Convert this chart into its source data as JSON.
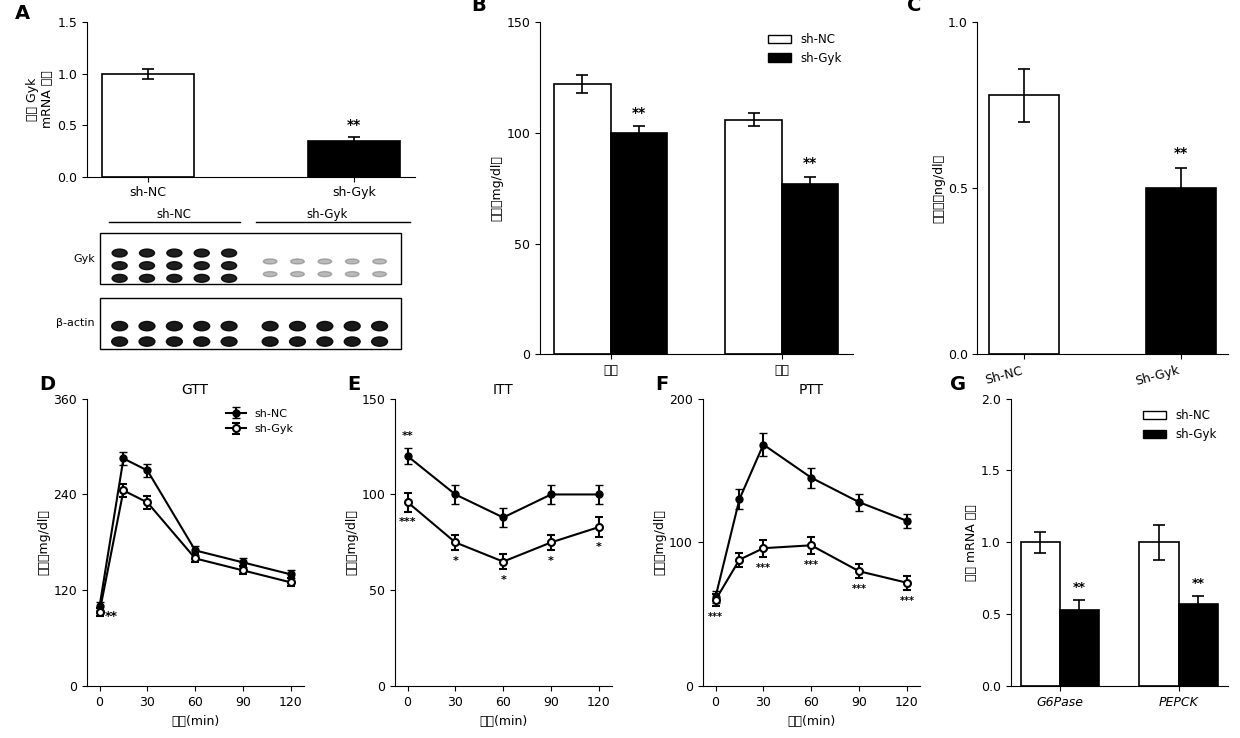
{
  "panel_A": {
    "label": "A",
    "bar_categories": [
      "sh-NC",
      "sh-Gyk"
    ],
    "bar_values": [
      1.0,
      0.35
    ],
    "bar_errors": [
      0.05,
      0.04
    ],
    "bar_colors": [
      "white",
      "black"
    ],
    "ylabel": "相对 Gyk\nmRNA 水平",
    "ylim": [
      0,
      1.5
    ],
    "yticks": [
      0.0,
      0.5,
      1.0,
      1.5
    ],
    "sig_labels": [
      "",
      "**"
    ]
  },
  "panel_B": {
    "label": "B",
    "group_labels": [
      "喂食",
      "禁食"
    ],
    "nc_values": [
      122,
      106
    ],
    "nc_errors": [
      4,
      3
    ],
    "gyk_values": [
      100,
      77
    ],
    "gyk_errors": [
      3,
      3
    ],
    "ylabel": "血糖（mg/dl）",
    "ylim": [
      0,
      150
    ],
    "yticks": [
      0,
      50,
      100,
      150
    ],
    "sig_labels": [
      "**",
      "**"
    ],
    "legend_labels": [
      "sh-NC",
      "sh-Gyk"
    ]
  },
  "panel_C": {
    "label": "C",
    "bar_categories": [
      "Sh-NC",
      "Sh-Gyk"
    ],
    "bar_values": [
      0.78,
      0.5
    ],
    "bar_errors": [
      0.08,
      0.06
    ],
    "bar_colors": [
      "white",
      "black"
    ],
    "ylabel": "胰岛素（ng/dl）",
    "ylim": [
      0,
      1.0
    ],
    "yticks": [
      0,
      0.5,
      1.0
    ],
    "sig_labels": [
      "",
      "**"
    ]
  },
  "panel_D": {
    "label": "D",
    "title": "GTT",
    "time_points": [
      0,
      15,
      30,
      60,
      90,
      120
    ],
    "nc_values": [
      100,
      285,
      270,
      170,
      155,
      140
    ],
    "nc_errors": [
      5,
      8,
      8,
      6,
      6,
      5
    ],
    "gyk_values": [
      93,
      245,
      230,
      160,
      145,
      130
    ],
    "gyk_errors": [
      5,
      8,
      8,
      5,
      5,
      5
    ],
    "ylabel": "血糖（mg/dl）",
    "xlabel": "时间(min)",
    "ylim": [
      0,
      360
    ],
    "yticks": [
      0,
      120,
      240,
      360
    ],
    "xticks": [
      0,
      30,
      60,
      90,
      120
    ],
    "legend_labels": [
      "sh-NC",
      "sh-Gyk"
    ]
  },
  "panel_E": {
    "label": "E",
    "title": "ITT",
    "time_points": [
      0,
      30,
      60,
      90,
      120
    ],
    "nc_values": [
      120,
      100,
      88,
      100,
      100
    ],
    "nc_errors": [
      4,
      5,
      5,
      5,
      5
    ],
    "gyk_values": [
      96,
      75,
      65,
      75,
      83
    ],
    "gyk_errors": [
      5,
      4,
      4,
      4,
      5
    ],
    "ylabel": "血糖（mg/dl）",
    "xlabel": "时间(min)",
    "ylim": [
      0,
      150
    ],
    "yticks": [
      0,
      50,
      100,
      150
    ],
    "xticks": [
      0,
      30,
      60,
      90,
      120
    ]
  },
  "panel_F": {
    "label": "F",
    "title": "PTT",
    "time_points": [
      0,
      15,
      30,
      60,
      90,
      120
    ],
    "nc_values": [
      62,
      130,
      168,
      145,
      128,
      115
    ],
    "nc_errors": [
      4,
      7,
      8,
      7,
      6,
      5
    ],
    "gyk_values": [
      60,
      88,
      96,
      98,
      80,
      72
    ],
    "gyk_errors": [
      4,
      5,
      6,
      6,
      5,
      5
    ],
    "ylabel": "血糖（mg/dl）",
    "xlabel": "时间(min)",
    "ylim": [
      0,
      200
    ],
    "yticks": [
      0,
      100,
      200
    ],
    "xticks": [
      0,
      30,
      60,
      90,
      120
    ]
  },
  "panel_G": {
    "label": "G",
    "bar_categories": [
      "G6Pase",
      "PEPCK"
    ],
    "nc_values": [
      1.0,
      1.0
    ],
    "nc_errors": [
      0.07,
      0.12
    ],
    "gyk_values": [
      0.53,
      0.57
    ],
    "gyk_errors": [
      0.07,
      0.06
    ],
    "ylabel": "相对 mRNA 水平",
    "ylim": [
      0,
      2.0
    ],
    "yticks": [
      0,
      0.5,
      1.0,
      1.5,
      2.0
    ],
    "sig_labels": [
      "**",
      "**"
    ],
    "legend_labels": [
      "sh-NC",
      "sh-Gyk"
    ]
  }
}
